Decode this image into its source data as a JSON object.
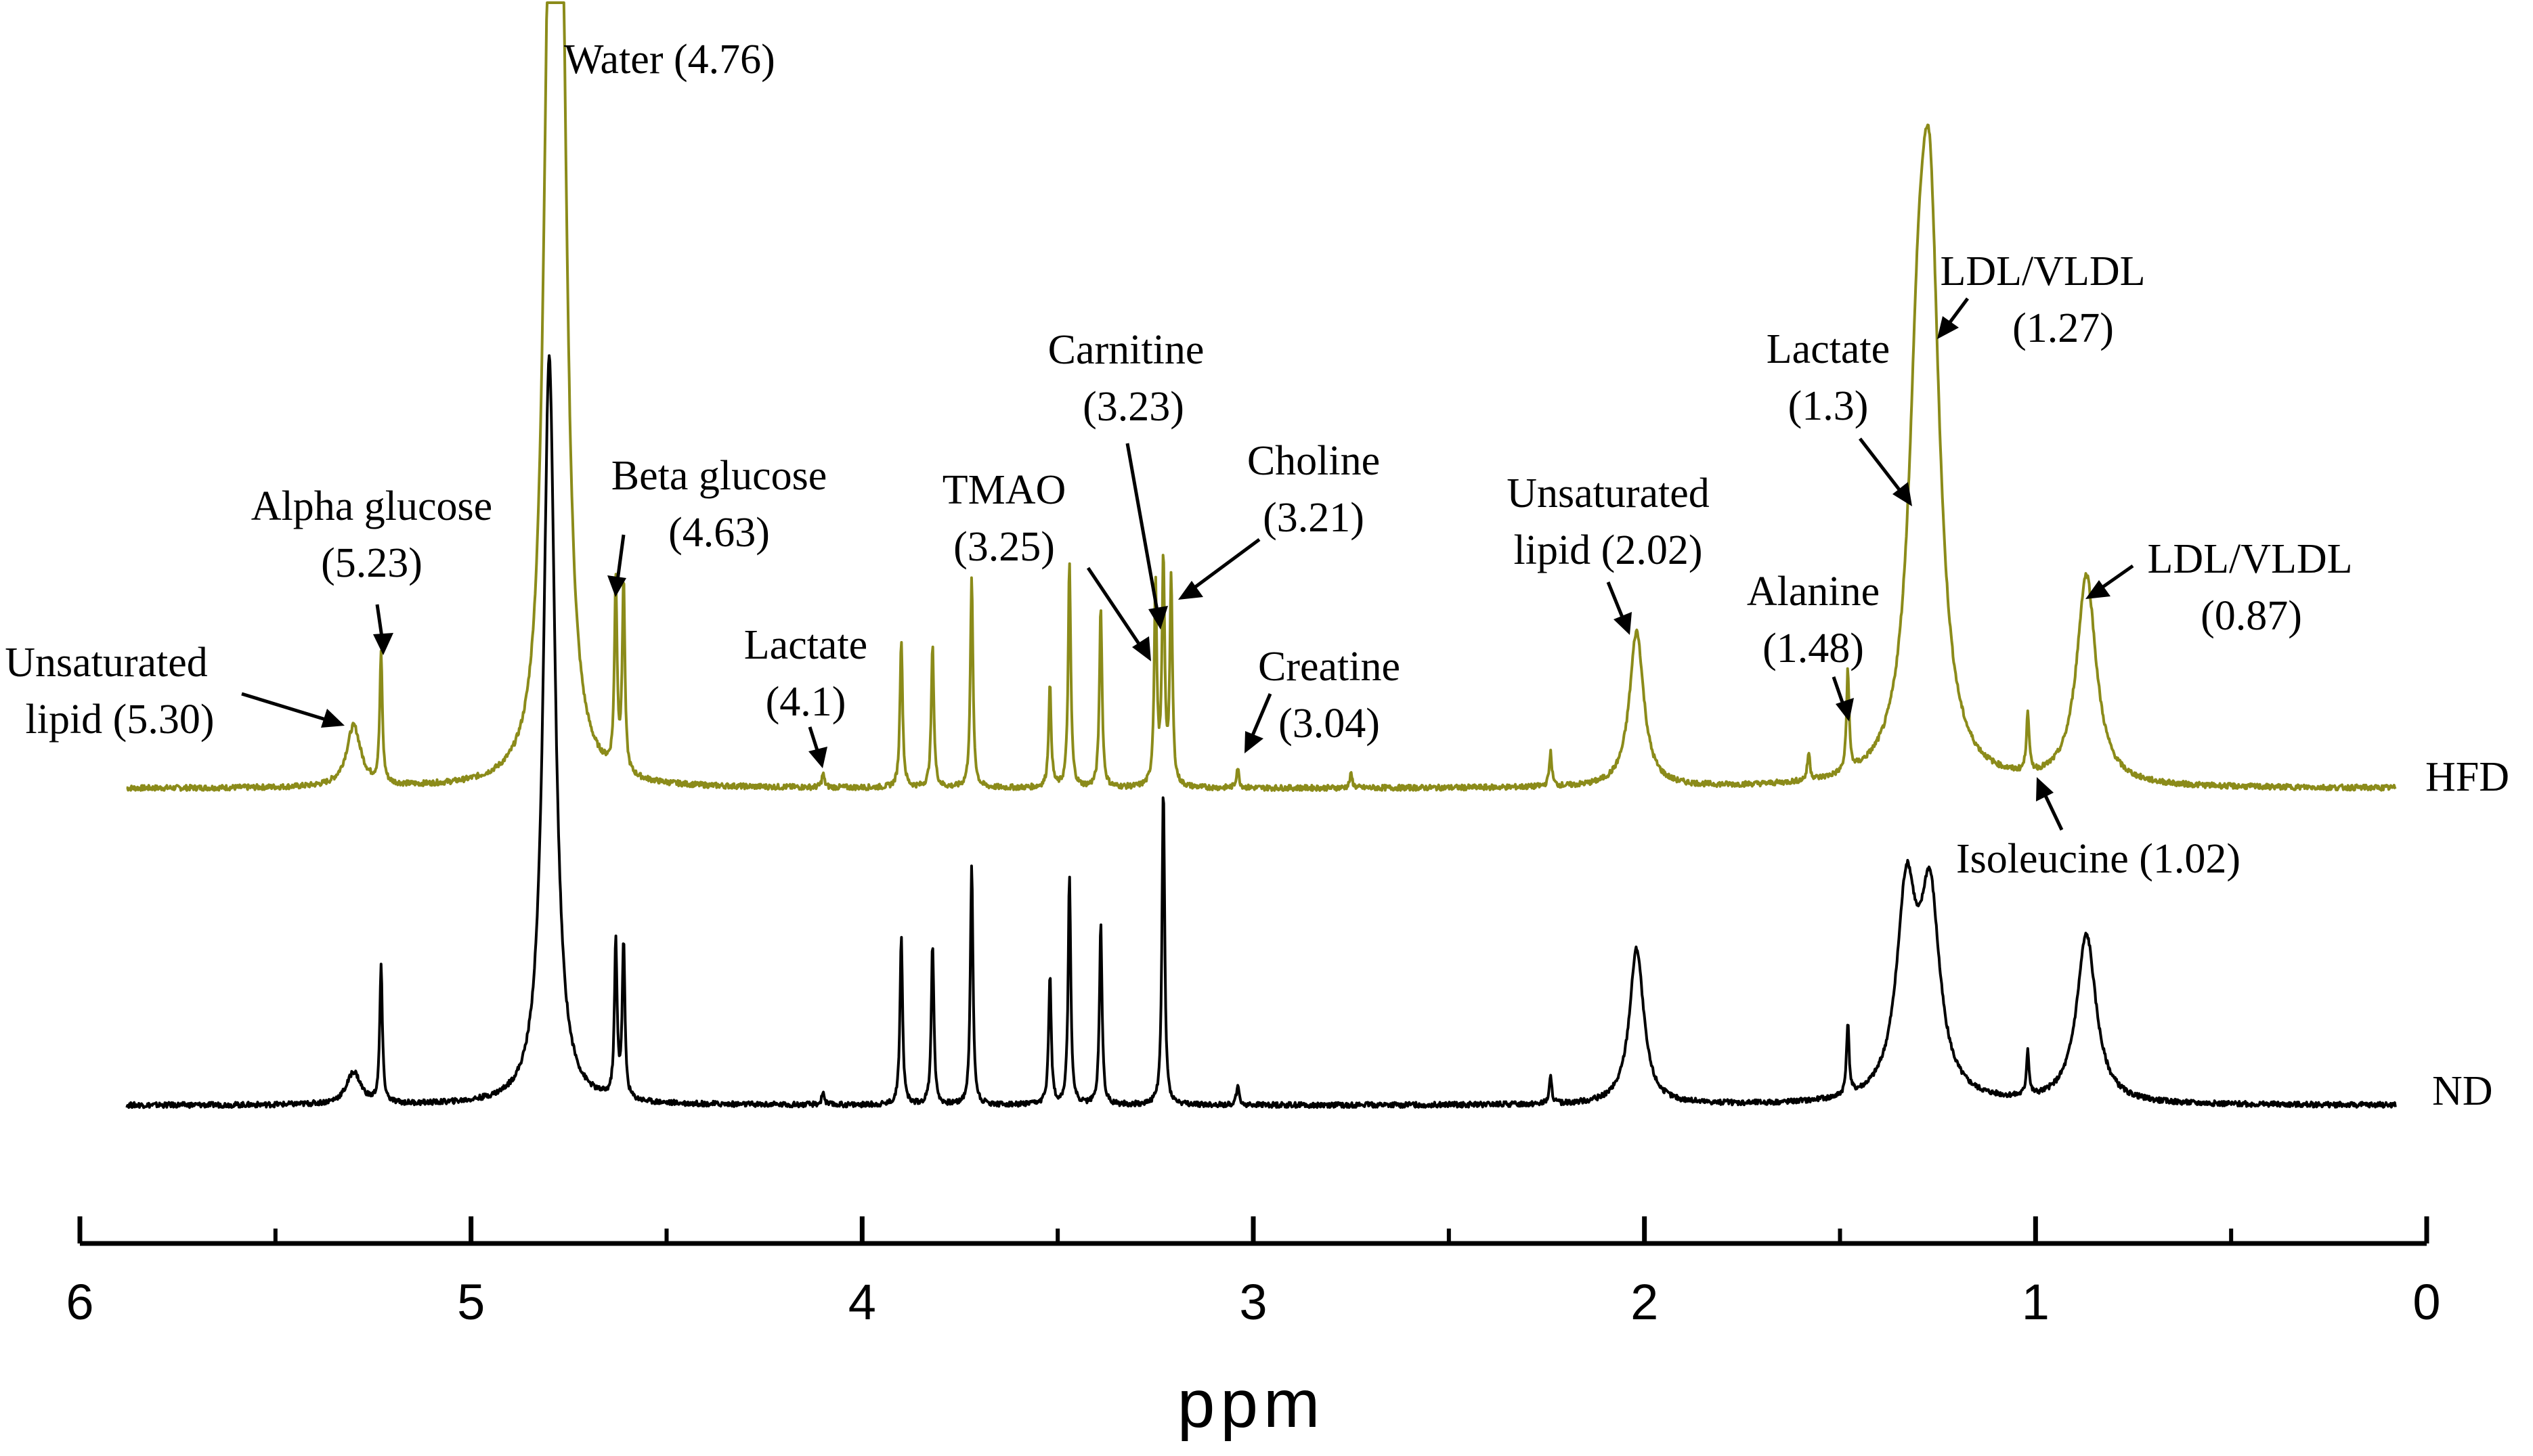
{
  "chart_data": {
    "type": "line",
    "xlabel": "ppm",
    "xlim": [
      6,
      0
    ],
    "x_reversed": true,
    "major_ticks": [
      6,
      5,
      4,
      3,
      2,
      1,
      0
    ],
    "minor_ticks": [
      5.5,
      4.5,
      3.5,
      2.5,
      1.5,
      0.5
    ],
    "tick_labels": [
      "6",
      "5",
      "4",
      "3",
      "2",
      "1",
      "0"
    ],
    "grid": false,
    "legend": "trace labels at right end",
    "colors": {
      "HFD": "#8b8b1a",
      "ND": "#000000",
      "axis": "#000000"
    },
    "series": [
      {
        "name": "HFD",
        "peaks": [
          {
            "ppm": 5.3,
            "height": 0.09
          },
          {
            "ppm": 5.23,
            "height": 0.19
          },
          {
            "ppm": 4.8,
            "height": 1.05
          },
          {
            "ppm": 4.77,
            "height": 1.15
          },
          {
            "ppm": 4.63,
            "height": 0.28
          },
          {
            "ppm": 4.61,
            "height": 0.28
          },
          {
            "ppm": 4.1,
            "height": 0.02
          },
          {
            "ppm": 3.9,
            "height": 0.22
          },
          {
            "ppm": 3.82,
            "height": 0.21
          },
          {
            "ppm": 3.72,
            "height": 0.31
          },
          {
            "ppm": 3.52,
            "height": 0.15
          },
          {
            "ppm": 3.47,
            "height": 0.33
          },
          {
            "ppm": 3.39,
            "height": 0.27
          },
          {
            "ppm": 3.25,
            "height": 0.3
          },
          {
            "ppm": 3.23,
            "height": 0.33
          },
          {
            "ppm": 3.21,
            "height": 0.3
          },
          {
            "ppm": 3.04,
            "height": 0.03
          },
          {
            "ppm": 2.75,
            "height": 0.02
          },
          {
            "ppm": 2.24,
            "height": 0.05
          },
          {
            "ppm": 2.02,
            "height": 0.23
          },
          {
            "ppm": 1.58,
            "height": 0.04
          },
          {
            "ppm": 1.48,
            "height": 0.15
          },
          {
            "ppm": 1.3,
            "height": 0.47
          },
          {
            "ppm": 1.27,
            "height": 0.72
          },
          {
            "ppm": 1.02,
            "height": 0.09
          },
          {
            "ppm": 0.87,
            "height": 0.31
          }
        ]
      },
      {
        "name": "ND",
        "peaks": [
          {
            "ppm": 5.3,
            "height": 0.05
          },
          {
            "ppm": 5.23,
            "height": 0.21
          },
          {
            "ppm": 4.8,
            "height": 1.15
          },
          {
            "ppm": 4.63,
            "height": 0.24
          },
          {
            "ppm": 4.61,
            "height": 0.24
          },
          {
            "ppm": 4.1,
            "height": 0.02
          },
          {
            "ppm": 3.9,
            "height": 0.26
          },
          {
            "ppm": 3.82,
            "height": 0.25
          },
          {
            "ppm": 3.72,
            "height": 0.37
          },
          {
            "ppm": 3.52,
            "height": 0.2
          },
          {
            "ppm": 3.47,
            "height": 0.35
          },
          {
            "ppm": 3.39,
            "height": 0.28
          },
          {
            "ppm": 3.23,
            "height": 0.49
          },
          {
            "ppm": 3.04,
            "height": 0.03
          },
          {
            "ppm": 2.24,
            "height": 0.04
          },
          {
            "ppm": 2.02,
            "height": 0.24
          },
          {
            "ppm": 1.48,
            "height": 0.11
          },
          {
            "ppm": 1.33,
            "height": 0.31
          },
          {
            "ppm": 1.27,
            "height": 0.3
          },
          {
            "ppm": 1.02,
            "height": 0.07
          },
          {
            "ppm": 0.87,
            "height": 0.26
          }
        ]
      }
    ],
    "annotations": [
      {
        "lines": [
          "Water (4.76)"
        ]
      },
      {
        "lines": [
          "Alpha glucose",
          "(5.23)"
        ]
      },
      {
        "lines": [
          "Beta glucose",
          "(4.63)"
        ]
      },
      {
        "lines": [
          "Unsaturated",
          "lipid (5.30)"
        ]
      },
      {
        "lines": [
          "Lactate",
          "(4.1)"
        ]
      },
      {
        "lines": [
          "Carnitine",
          "(3.23)"
        ]
      },
      {
        "lines": [
          "TMAO",
          "(3.25)"
        ]
      },
      {
        "lines": [
          "Choline",
          "(3.21)"
        ]
      },
      {
        "lines": [
          "Creatine",
          "(3.04)"
        ]
      },
      {
        "lines": [
          "Unsaturated",
          "lipid (2.02)"
        ]
      },
      {
        "lines": [
          "Lactate",
          "(1.3)"
        ]
      },
      {
        "lines": [
          "LDL/VLDL",
          "(1.27)"
        ]
      },
      {
        "lines": [
          "Alanine",
          "(1.48)"
        ]
      },
      {
        "lines": [
          "LDL/VLDL",
          "(0.87)"
        ]
      },
      {
        "lines": [
          "Isoleucine (1.02)"
        ]
      }
    ]
  }
}
